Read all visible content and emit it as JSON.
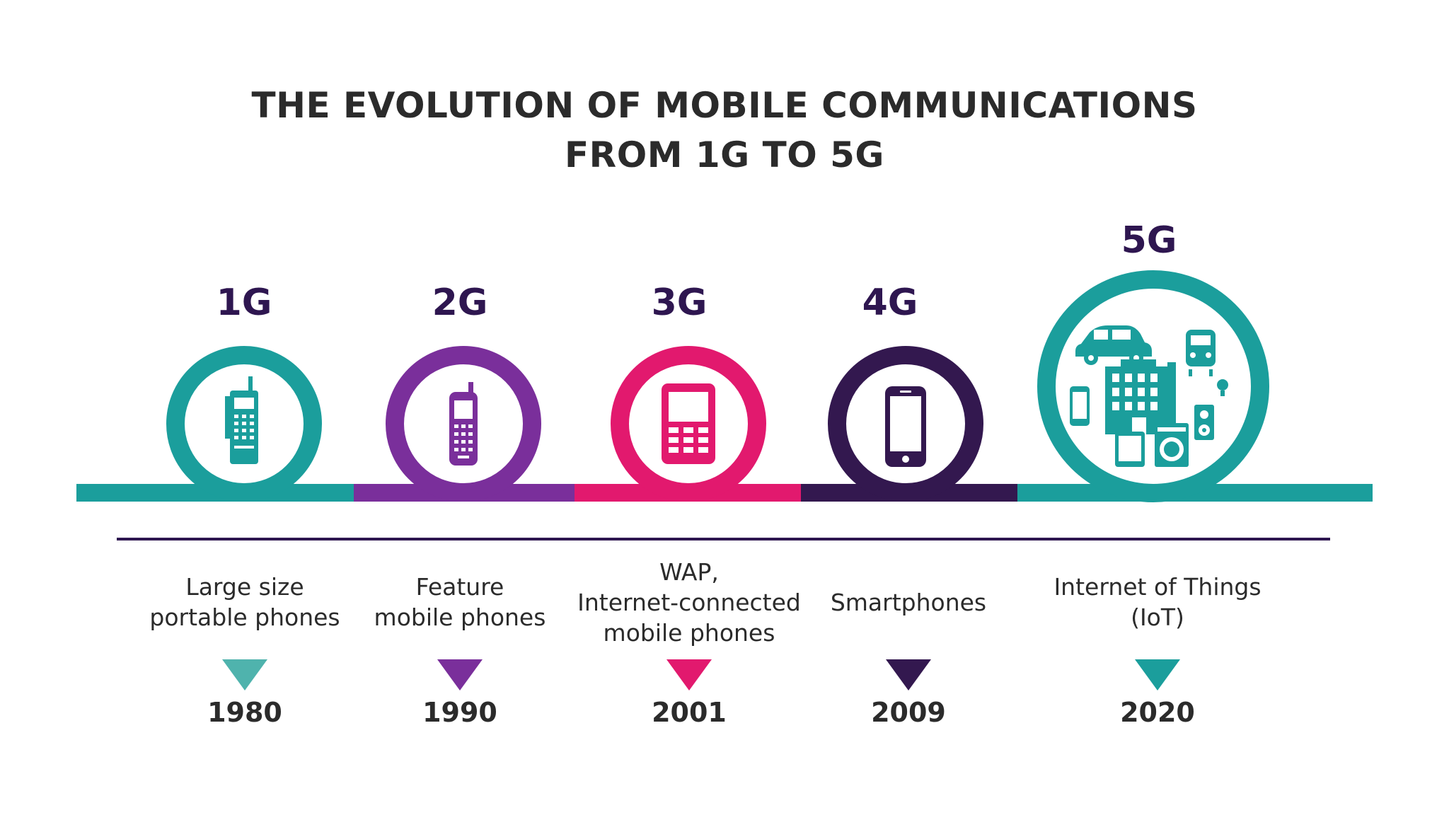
{
  "title": {
    "line1": "THE EVOLUTION OF MOBILE COMMUNICATIONS",
    "line2": "FROM 1G TO 5G"
  },
  "generations": [
    {
      "label": "1G",
      "color": "#1b9e9c",
      "label_color": "#2e1650",
      "icon": "brick-phone-icon",
      "desc": [
        "Large size",
        "portable phones"
      ],
      "year": "1980",
      "tri_color": "#4fb3ad"
    },
    {
      "label": "2G",
      "color": "#7a2f9b",
      "label_color": "#2e1650",
      "icon": "feature-phone-icon",
      "desc": [
        "Feature",
        "mobile phones"
      ],
      "year": "1990",
      "tri_color": "#7a2f9b"
    },
    {
      "label": "3G",
      "color": "#e2196e",
      "label_color": "#2e1650",
      "icon": "keypad-phone-icon",
      "desc": [
        "WAP,",
        "Internet-connected",
        "mobile phones"
      ],
      "year": "2001",
      "tri_color": "#e2196e"
    },
    {
      "label": "4G",
      "color": "#33184f",
      "label_color": "#2e1650",
      "icon": "smartphone-icon",
      "desc": [
        "Smartphones"
      ],
      "year": "2009",
      "tri_color": "#33184f"
    },
    {
      "label": "5G",
      "color": "#1b9e9c",
      "label_color": "#2e1650",
      "icon": "iot-cluster-icon",
      "desc": [
        "Internet of Things",
        "(IoT)"
      ],
      "year": "2020",
      "tri_color": "#1b9e9c"
    }
  ],
  "colors": {
    "teal": "#1b9e9c",
    "purple": "#7a2f9b",
    "magenta": "#e2196e",
    "dark_purple": "#33184f",
    "divider": "#2e1650",
    "text": "#2b2b2b"
  }
}
